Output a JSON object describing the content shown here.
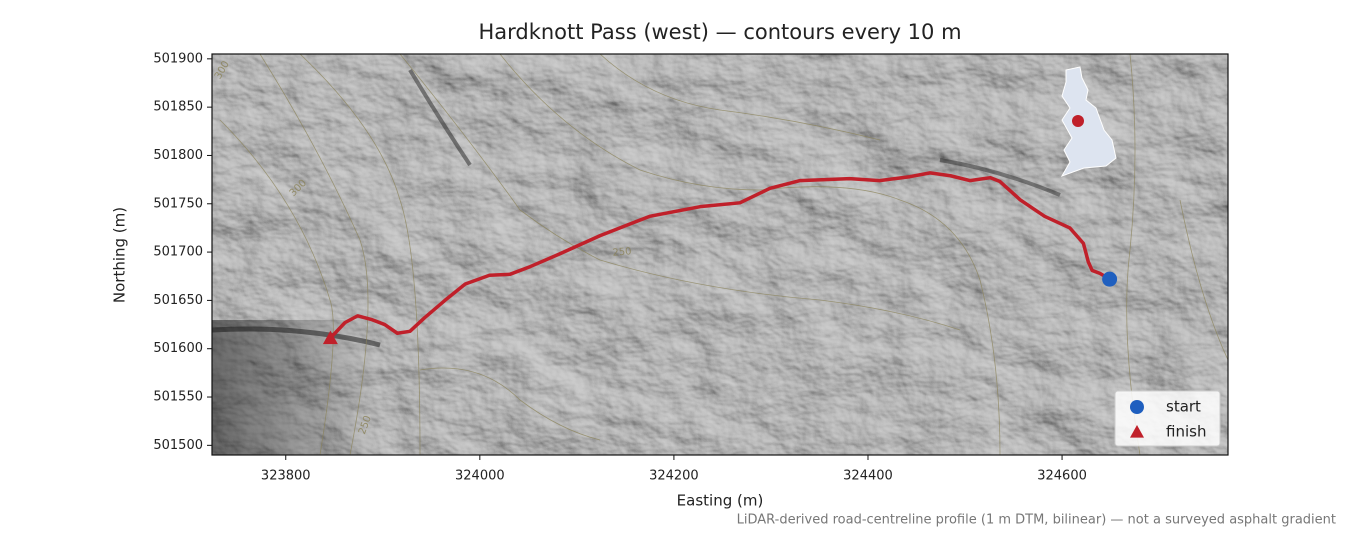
{
  "chart_data": {
    "type": "map",
    "title": "Hardknott Pass (west) — contours every 10 m",
    "xlabel": "Easting (m)",
    "ylabel": "Northing (m)",
    "note": "LiDAR-derived road-centreline profile (1 m DTM, bilinear) — not a surveyed asphalt gradient",
    "xlim": [
      323724,
      324771
    ],
    "ylim": [
      501490,
      501905
    ],
    "xticks": [
      323800,
      324000,
      324200,
      324400,
      324600
    ],
    "yticks": [
      501500,
      501550,
      501600,
      501650,
      501700,
      501750,
      501800,
      501850,
      501900
    ],
    "route": {
      "color": "#c0202a",
      "x": [
        323846,
        323861,
        323874,
        323889,
        323902,
        323915,
        323928,
        323943,
        323964,
        323985,
        324010,
        324031,
        324052,
        324082,
        324124,
        324175,
        324227,
        324268,
        324299,
        324330,
        324381,
        324412,
        324443,
        324464,
        324485,
        324505,
        324526,
        324536,
        324557,
        324582,
        324608,
        324622,
        324627,
        324631,
        324639,
        324649
      ],
      "y": [
        501611,
        501627,
        501634,
        501630,
        501625,
        501616,
        501618,
        501632,
        501650,
        501667,
        501676,
        501677,
        501685,
        501698,
        501717,
        501737,
        501747,
        501751,
        501766,
        501774,
        501776,
        501774,
        501778,
        501782,
        501779,
        501774,
        501777,
        501773,
        501754,
        501737,
        501725,
        501709,
        501690,
        501681,
        501678,
        501672
      ]
    },
    "series": [
      {
        "name": "start",
        "color": "#1f5fbf",
        "marker": "circle",
        "x": [
          324649
        ],
        "y": [
          501672
        ]
      },
      {
        "name": "finish",
        "color": "#c0202a",
        "marker": "triangle",
        "x": [
          323846
        ],
        "y": [
          501611
        ]
      }
    ],
    "contour_labels": [
      "300",
      "300",
      "250",
      "250"
    ],
    "legend": "lower right"
  }
}
